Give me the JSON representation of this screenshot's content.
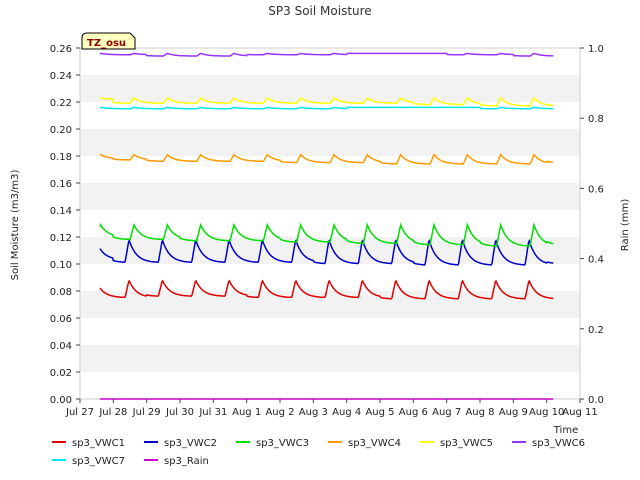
{
  "chart_data": {
    "type": "line",
    "title": "SP3 Soil Moisture",
    "ylabel": "Soil Moisture (m3/m3)",
    "y2label": "Rain (mm)",
    "xlabel": "Time",
    "station_tag": "TZ_osu",
    "ylim": [
      0,
      0.26
    ],
    "y2lim": [
      0,
      1.0
    ],
    "xlim": [
      0,
      15
    ],
    "yticks": [
      "0.00",
      "0.02",
      "0.04",
      "0.06",
      "0.08",
      "0.10",
      "0.12",
      "0.14",
      "0.16",
      "0.18",
      "0.20",
      "0.22",
      "0.24",
      "0.26"
    ],
    "y2ticks": [
      "0.0",
      "0.2",
      "0.4",
      "0.6",
      "0.8",
      "1.0"
    ],
    "xticks": [
      "Jul 27",
      "Jul 28",
      "Jul 29",
      "Jul 30",
      "Jul 31",
      "Aug 1",
      "Aug 2",
      "Aug 3",
      "Aug 4",
      "Aug 5",
      "Aug 6",
      "Aug 7",
      "Aug 8",
      "Aug 9",
      "Aug 10",
      "Aug 11"
    ],
    "grid": "horizontal bands",
    "legend_position": "bottom",
    "x_start": 0.6,
    "x_end": 14.2,
    "series": [
      {
        "name": "sp3_VWC1",
        "color": "#dd0000",
        "axis": "left",
        "base": [
          0.075,
          0.075,
          0.076,
          0.076,
          0.076,
          0.075,
          0.075,
          0.075,
          0.075,
          0.074,
          0.074,
          0.074,
          0.074,
          0.074,
          0.074
        ],
        "peak": 0.088,
        "peak_offset": 0.35
      },
      {
        "name": "sp3_VWC2",
        "color": "#0000cc",
        "axis": "left",
        "base": [
          0.103,
          0.101,
          0.101,
          0.101,
          0.101,
          0.101,
          0.101,
          0.1,
          0.1,
          0.1,
          0.099,
          0.099,
          0.099,
          0.099,
          0.1
        ],
        "peak": 0.118,
        "peak_offset": 0.35
      },
      {
        "name": "sp3_VWC3",
        "color": "#00dd00",
        "axis": "left",
        "base": [
          0.12,
          0.118,
          0.118,
          0.117,
          0.117,
          0.117,
          0.116,
          0.116,
          0.115,
          0.115,
          0.114,
          0.114,
          0.113,
          0.113,
          0.114
        ],
        "peak": 0.129,
        "peak_offset": 0.5
      },
      {
        "name": "sp3_VWC4",
        "color": "#ff9900",
        "axis": "left",
        "base": [
          0.178,
          0.177,
          0.176,
          0.176,
          0.176,
          0.176,
          0.175,
          0.175,
          0.175,
          0.174,
          0.174,
          0.174,
          0.174,
          0.174,
          0.175
        ],
        "peak": 0.181,
        "peak_offset": 0.5
      },
      {
        "name": "sp3_VWC5",
        "color": "#ffff00",
        "axis": "left",
        "base": [
          0.222,
          0.219,
          0.219,
          0.219,
          0.219,
          0.219,
          0.219,
          0.219,
          0.219,
          0.219,
          0.218,
          0.218,
          0.217,
          0.217,
          0.217
        ],
        "peak": 0.223,
        "peak_offset": 0.5
      },
      {
        "name": "sp3_VWC6",
        "color": "#9933ff",
        "axis": "left",
        "base": [
          0.255,
          0.255,
          0.254,
          0.254,
          0.254,
          0.255,
          0.255,
          0.255,
          0.256,
          0.256,
          0.256,
          0.255,
          0.255,
          0.254,
          0.254
        ],
        "peak": 0.256,
        "peak_offset": 0.5
      },
      {
        "name": "sp3_VWC7",
        "color": "#00e5ee",
        "axis": "left",
        "base": [
          0.215,
          0.215,
          0.215,
          0.215,
          0.215,
          0.215,
          0.215,
          0.215,
          0.216,
          0.216,
          0.216,
          0.216,
          0.215,
          0.215,
          0.215
        ],
        "peak": 0.216,
        "peak_offset": 0.5
      },
      {
        "name": "sp3_Rain",
        "color": "#cc00cc",
        "axis": "right",
        "base": [
          0.0,
          0.0,
          0.0,
          0.0,
          0.0,
          0.0,
          0.0,
          0.0,
          0.0,
          0.0,
          0.0,
          0.0,
          0.0,
          0.0,
          0.0
        ],
        "peak": 0.0,
        "peak_offset": 0.5
      }
    ]
  }
}
